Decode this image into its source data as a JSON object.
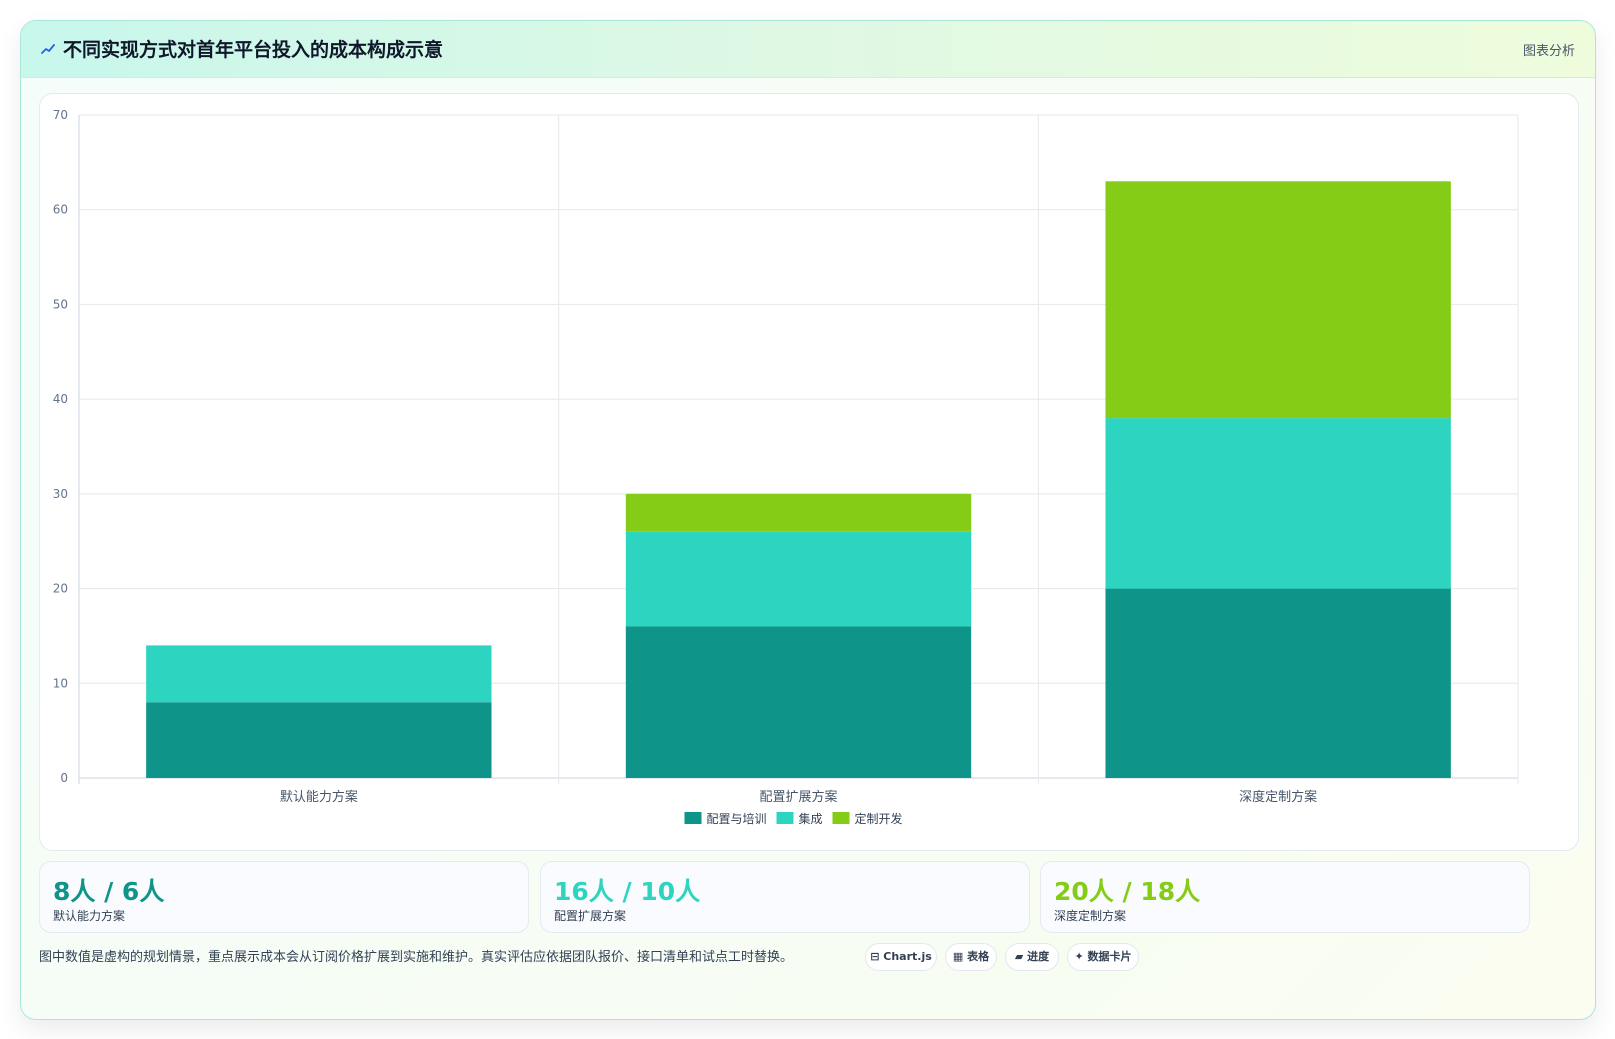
{
  "header": {
    "title": "不同实现方式对首年平台投入的成本构成示意",
    "tag": "图表分析"
  },
  "colors": {
    "config_training": "#0e9488",
    "integration": "#2dd4bf",
    "custom_dev": "#84cc16"
  },
  "chart_data": {
    "type": "bar",
    "stacked": true,
    "title": "",
    "xlabel": "",
    "ylabel": "",
    "categories": [
      "默认能力方案",
      "配置扩展方案",
      "深度定制方案"
    ],
    "series": [
      {
        "name": "配置与培训",
        "values": [
          8,
          16,
          20
        ],
        "color": "#0e9488"
      },
      {
        "name": "集成",
        "values": [
          6,
          10,
          18
        ],
        "color": "#2dd4bf"
      },
      {
        "name": "定制开发",
        "values": [
          0,
          4,
          25
        ],
        "color": "#84cc16"
      }
    ],
    "ylim": [
      0,
      70
    ],
    "yticks": [
      0,
      10,
      20,
      30,
      40,
      50,
      60,
      70
    ],
    "grid": true,
    "legend": "bottom-center"
  },
  "stats": [
    {
      "value": "8人 / 6人",
      "label": "默认能力方案",
      "color": "#0e9488"
    },
    {
      "value": "16人 / 10人",
      "label": "配置扩展方案",
      "color": "#2dd4bf"
    },
    {
      "value": "20人 / 18人",
      "label": "深度定制方案",
      "color": "#84cc16"
    }
  ],
  "footnote": "图中数值是虚构的规划情景，重点展示成本会从订阅价格扩展到实施和维护。真实评估应依据团队报价、接口清单和试点工时替换。",
  "chips": [
    {
      "icon": "table-icon",
      "label": "⊟ Chart.js"
    },
    {
      "icon": "grid-icon",
      "label": "▦ 表格"
    },
    {
      "icon": "progress-icon",
      "label": "▰ 进度"
    },
    {
      "icon": "sparkle-icon",
      "label": "✦ 数据卡片"
    }
  ]
}
